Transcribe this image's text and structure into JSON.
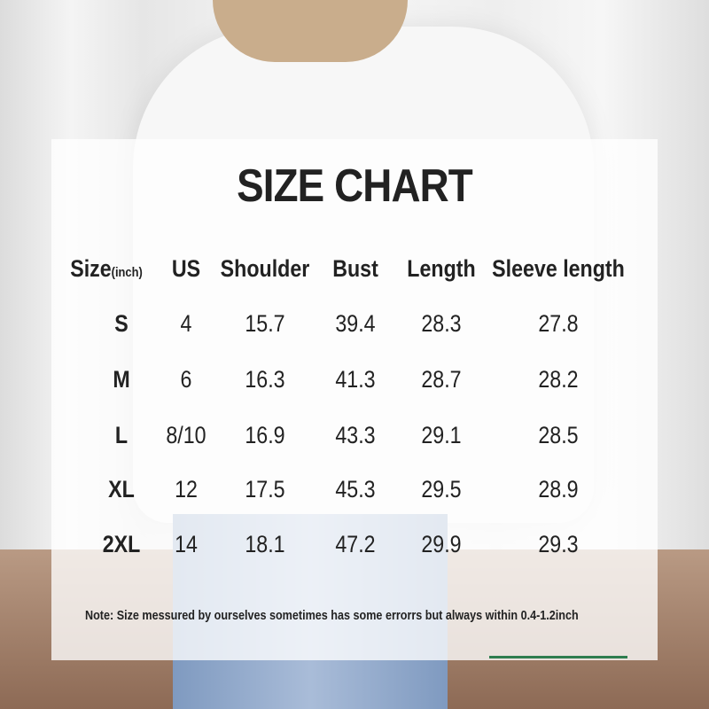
{
  "title": "SIZE CHART",
  "headers": {
    "size": "Size",
    "size_unit": "(inch)",
    "us": "US",
    "shoulder": "Shoulder",
    "bust": "Bust",
    "length": "Length",
    "sleeve": "Sleeve length"
  },
  "rows": [
    {
      "size": "S",
      "us": "4",
      "shoulder": "15.7",
      "bust": "39.4",
      "length": "28.3",
      "sleeve": "27.8"
    },
    {
      "size": "M",
      "us": "6",
      "shoulder": "16.3",
      "bust": "41.3",
      "length": "28.7",
      "sleeve": "28.2"
    },
    {
      "size": "L",
      "us": "8/10",
      "shoulder": "16.9",
      "bust": "43.3",
      "length": "29.1",
      "sleeve": "28.5"
    },
    {
      "size": "XL",
      "us": "12",
      "shoulder": "17.5",
      "bust": "45.3",
      "length": "29.5",
      "sleeve": "28.9"
    },
    {
      "size": "2XL",
      "us": "14",
      "shoulder": "18.1",
      "bust": "47.2",
      "length": "29.9",
      "sleeve": "29.3"
    }
  ],
  "note": "Note:  Size messured by ourselves sometimes has some errorrs but always within 0.4-1.2inch",
  "colors": {
    "text": "#222222",
    "accent_line": "#2e7d4f"
  }
}
